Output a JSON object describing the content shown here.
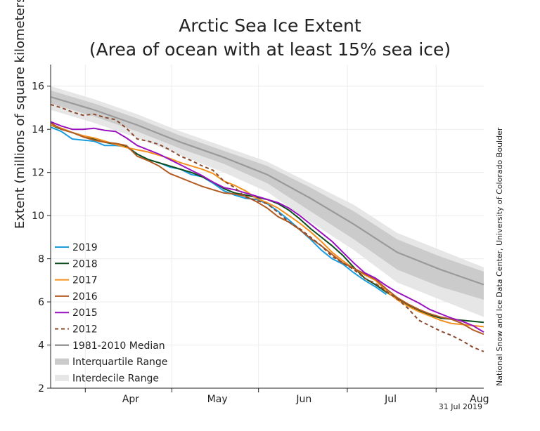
{
  "header": {
    "title": "Arctic Sea Ice Extent",
    "subtitle": "(Area of ocean with at least 15% sea ice)"
  },
  "credit": "National Snow and Ice Data Center, University of Colorado Boulder",
  "date_stamp": "31 Jul 2019",
  "chart_data": {
    "type": "line",
    "title": "Arctic Sea Ice Extent",
    "subtitle": "(Area of ocean with at least 15% sea ice)",
    "ylabel": "Extent (millions of square kilometers)",
    "xlabel": "",
    "ylim": [
      2,
      17
    ],
    "yticks": [
      2,
      4,
      6,
      8,
      10,
      12,
      14,
      16
    ],
    "xlim": [
      0,
      200
    ],
    "month_boundaries": [
      16,
      56,
      96,
      137,
      178
    ],
    "month_ticks": [
      {
        "label": "Apr",
        "x": 18
      },
      {
        "label": "May",
        "x": 58
      },
      {
        "label": "Jun",
        "x": 98
      },
      {
        "label": "Jul",
        "x": 138
      },
      {
        "label": "Aug",
        "x": 179
      }
    ],
    "grid": true,
    "legend_position": "bottom-left",
    "x_note": "x = day index starting at start of chart (approx. 16 Mar)",
    "bands": {
      "x": [
        0,
        20,
        40,
        60,
        80,
        100,
        120,
        140,
        160,
        180,
        200
      ],
      "median": [
        15.5,
        14.9,
        14.2,
        13.4,
        12.7,
        11.9,
        10.8,
        9.6,
        8.3,
        7.5,
        6.8
      ],
      "interquartile_low": [
        15.2,
        14.6,
        13.9,
        13.1,
        12.4,
        11.5,
        10.2,
        8.9,
        7.5,
        6.7,
        6.1
      ],
      "interquartile_high": [
        15.8,
        15.2,
        14.5,
        13.7,
        13.0,
        12.3,
        11.3,
        10.2,
        8.9,
        8.1,
        7.4
      ],
      "interdecile_low": [
        14.9,
        14.3,
        13.6,
        12.8,
        12.0,
        11.1,
        9.7,
        8.4,
        6.9,
        6.1,
        5.3
      ],
      "interdecile_high": [
        16.0,
        15.4,
        14.7,
        13.9,
        13.2,
        12.5,
        11.5,
        10.5,
        9.2,
        8.4,
        7.6
      ],
      "median_label": "1981-2010 Median",
      "interquartile_label": "Interquartile Range",
      "interdecile_label": "Interdecile Range"
    },
    "series": [
      {
        "name": "2019",
        "color": "#1a9de0",
        "dash": false,
        "x": [
          0,
          5,
          10,
          15,
          20,
          25,
          30,
          35,
          40,
          45,
          50,
          55,
          60,
          65,
          70,
          75,
          80,
          85,
          90,
          95,
          100,
          105,
          110,
          115,
          120,
          125,
          130,
          135,
          140,
          145,
          150,
          155,
          160
        ],
        "y": [
          14.1,
          13.9,
          13.55,
          13.5,
          13.45,
          13.25,
          13.25,
          13.2,
          12.85,
          12.6,
          12.45,
          12.25,
          12.15,
          11.9,
          11.8,
          11.5,
          11.15,
          10.95,
          10.8,
          10.75,
          10.55,
          10.2,
          9.8,
          9.35,
          8.9,
          8.4,
          8.0,
          7.75,
          7.35,
          7.0,
          6.7,
          6.35,
          null
        ]
      },
      {
        "name": "2018",
        "color": "#0b4d1c",
        "dash": false,
        "x": [
          0,
          5,
          10,
          15,
          20,
          25,
          30,
          35,
          40,
          45,
          50,
          55,
          60,
          65,
          70,
          75,
          80,
          85,
          90,
          95,
          100,
          105,
          110,
          115,
          120,
          125,
          130,
          135,
          140,
          145,
          150,
          155,
          160,
          165,
          170,
          175,
          180,
          185,
          190,
          195,
          200
        ],
        "y": [
          14.2,
          14.0,
          13.85,
          13.7,
          13.55,
          13.4,
          13.3,
          13.2,
          12.85,
          12.6,
          12.45,
          12.3,
          12.15,
          12.0,
          11.8,
          11.55,
          11.25,
          11.05,
          10.95,
          10.85,
          10.75,
          10.55,
          10.25,
          9.85,
          9.4,
          9.0,
          8.6,
          8.15,
          7.6,
          7.1,
          6.8,
          6.45,
          6.15,
          5.85,
          5.6,
          5.4,
          5.25,
          5.2,
          5.15,
          5.1,
          5.05
        ]
      },
      {
        "name": "2017",
        "color": "#f4901e",
        "dash": false,
        "x": [
          0,
          5,
          10,
          15,
          20,
          25,
          30,
          35,
          40,
          45,
          50,
          55,
          60,
          65,
          70,
          75,
          80,
          85,
          90,
          95,
          100,
          105,
          110,
          115,
          120,
          125,
          130,
          135,
          140,
          145,
          150,
          155,
          160,
          165,
          170,
          175,
          180,
          185,
          190,
          195,
          200
        ],
        "y": [
          14.2,
          14.05,
          13.85,
          13.7,
          13.6,
          13.45,
          13.3,
          13.15,
          13.05,
          12.95,
          12.8,
          12.65,
          12.45,
          12.3,
          12.15,
          11.95,
          11.6,
          11.4,
          11.15,
          10.8,
          10.6,
          10.35,
          10.0,
          9.65,
          9.25,
          8.8,
          8.3,
          7.9,
          7.55,
          7.25,
          7.0,
          6.5,
          6.1,
          5.8,
          5.55,
          5.35,
          5.15,
          5.0,
          4.95,
          4.9,
          4.85
        ]
      },
      {
        "name": "2016",
        "color": "#b15a22",
        "dash": false,
        "x": [
          0,
          5,
          10,
          15,
          20,
          25,
          30,
          35,
          40,
          45,
          50,
          55,
          60,
          65,
          70,
          75,
          80,
          85,
          90,
          95,
          100,
          105,
          110,
          115,
          120,
          125,
          130,
          135,
          140,
          145,
          150,
          155,
          160,
          165,
          170,
          175,
          180,
          185,
          190,
          195,
          200
        ],
        "y": [
          14.3,
          14.0,
          13.85,
          13.65,
          13.5,
          13.4,
          13.35,
          13.25,
          12.75,
          12.55,
          12.3,
          11.95,
          11.75,
          11.55,
          11.35,
          11.2,
          11.05,
          11.0,
          10.9,
          10.65,
          10.35,
          9.95,
          9.7,
          9.35,
          8.95,
          8.6,
          8.2,
          7.8,
          7.55,
          7.3,
          7.05,
          6.6,
          6.2,
          5.9,
          5.65,
          5.45,
          5.3,
          5.2,
          5.0,
          4.7,
          4.5
        ]
      },
      {
        "name": "2015",
        "color": "#9a12c0",
        "dash": false,
        "x": [
          0,
          5,
          10,
          15,
          20,
          25,
          30,
          35,
          40,
          45,
          50,
          55,
          60,
          65,
          70,
          75,
          80,
          85,
          90,
          95,
          100,
          105,
          110,
          115,
          120,
          125,
          130,
          135,
          140,
          145,
          150,
          155,
          160,
          165,
          170,
          175,
          180,
          185,
          190,
          195,
          200
        ],
        "y": [
          14.35,
          14.15,
          14.0,
          14.0,
          14.05,
          13.95,
          13.9,
          13.6,
          13.25,
          13.05,
          12.85,
          12.6,
          12.35,
          12.1,
          11.85,
          11.55,
          11.3,
          11.2,
          11.05,
          10.9,
          10.75,
          10.6,
          10.35,
          10.0,
          9.6,
          9.2,
          8.8,
          8.3,
          7.8,
          7.35,
          7.1,
          6.75,
          6.45,
          6.2,
          5.95,
          5.65,
          5.45,
          5.25,
          5.1,
          4.9,
          4.6
        ]
      },
      {
        "name": "2012",
        "color": "#8b4a2e",
        "dash": true,
        "x": [
          0,
          5,
          10,
          15,
          20,
          25,
          30,
          35,
          40,
          45,
          50,
          55,
          60,
          65,
          70,
          75,
          80,
          85,
          90,
          95,
          100,
          105,
          110,
          115,
          120,
          125,
          130,
          135,
          140,
          145,
          150,
          155,
          160,
          165,
          170,
          175,
          180,
          185,
          190,
          195,
          200
        ],
        "y": [
          15.15,
          15.0,
          14.8,
          14.65,
          14.7,
          14.55,
          14.45,
          14.05,
          13.55,
          13.45,
          13.3,
          13.05,
          12.75,
          12.55,
          12.3,
          12.1,
          11.6,
          11.3,
          10.85,
          10.7,
          10.55,
          10.15,
          9.7,
          9.4,
          9.0,
          8.6,
          8.1,
          7.8,
          7.5,
          7.1,
          6.85,
          6.5,
          6.15,
          5.7,
          5.15,
          4.9,
          4.65,
          4.45,
          4.2,
          3.9,
          3.7
        ]
      }
    ]
  }
}
